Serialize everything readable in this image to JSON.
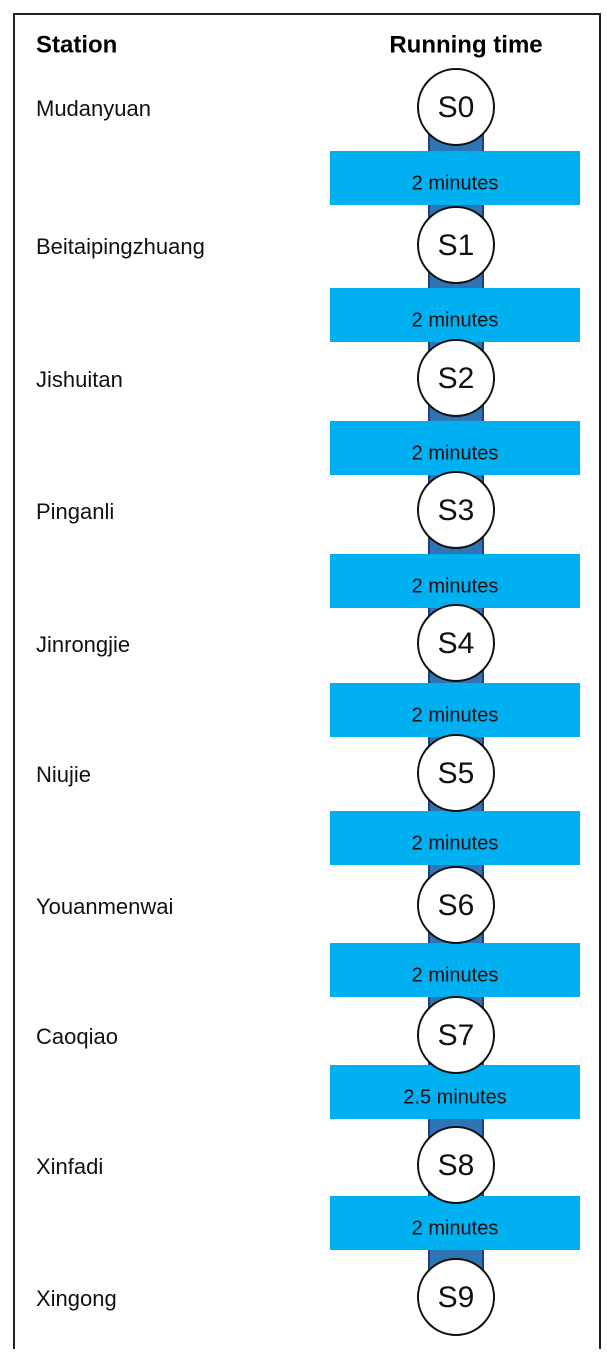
{
  "header": {
    "station": "Station",
    "running_time": "Running time"
  },
  "stations": [
    {
      "name": "Mudanyuan",
      "code": "S0"
    },
    {
      "name": "Beitaipingzhuang",
      "code": "S1"
    },
    {
      "name": "Jishuitan",
      "code": "S2"
    },
    {
      "name": "Pinganli",
      "code": "S3"
    },
    {
      "name": "Jinrongjie",
      "code": "S4"
    },
    {
      "name": "Niujie",
      "code": "S5"
    },
    {
      "name": "Youanmenwai",
      "code": "S6"
    },
    {
      "name": "Caoqiao",
      "code": "S7"
    },
    {
      "name": "Xinfadi",
      "code": "S8"
    },
    {
      "name": "Xingong",
      "code": "S9"
    }
  ],
  "segments": [
    {
      "label": "2 minutes"
    },
    {
      "label": "2 minutes"
    },
    {
      "label": "2 minutes"
    },
    {
      "label": "2 minutes"
    },
    {
      "label": "2 minutes"
    },
    {
      "label": "2 minutes"
    },
    {
      "label": "2 minutes"
    },
    {
      "label": "2.5 minutes"
    },
    {
      "label": "2 minutes"
    }
  ]
}
